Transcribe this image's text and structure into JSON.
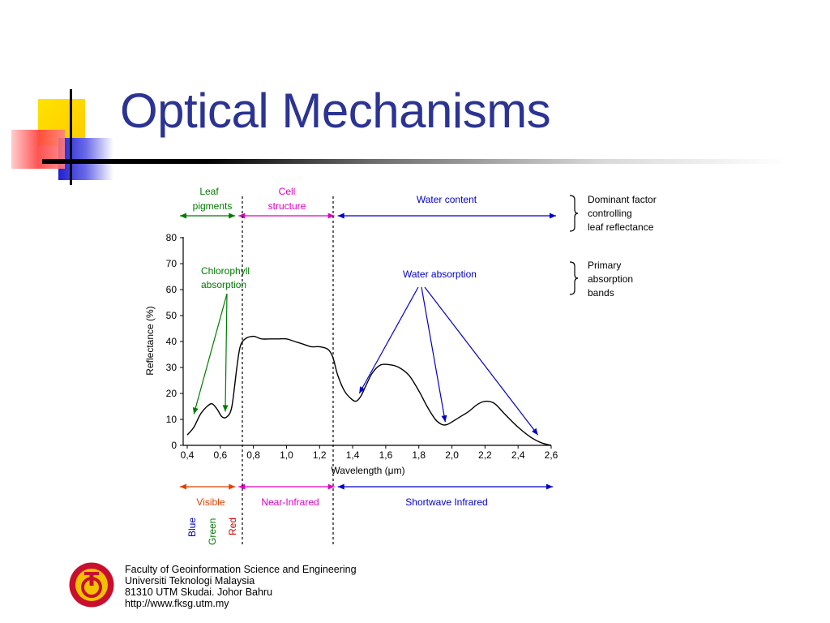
{
  "slide": {
    "title": "Optical Mechanisms"
  },
  "footer": {
    "line1": "Faculty of Geoinformation Science and Engineering",
    "line2": "Universiti Teknologi Malaysia",
    "line3": "81310 UTM Skudai. Johor Bahru",
    "line4": "http://www.fksg.utm.my"
  },
  "chart_data": {
    "type": "line",
    "xlabel": "Wavelength (μm)",
    "ylabel": "Reflectance (%)",
    "xlim": [
      0.4,
      2.6
    ],
    "ylim": [
      0,
      80
    ],
    "xticks": [
      "0,4",
      "0,6",
      "0,8",
      "1,0",
      "1,2",
      "1,4",
      "1,6",
      "1,8",
      "2,0",
      "2,2",
      "2,4",
      "2,6"
    ],
    "yticks": [
      "0",
      "10",
      "20",
      "30",
      "40",
      "50",
      "60",
      "70",
      "80"
    ],
    "grid": false,
    "series": [
      {
        "x": [
          0.4,
          0.44,
          0.48,
          0.52,
          0.55,
          0.58,
          0.61,
          0.64,
          0.67,
          0.7,
          0.72,
          0.75,
          0.8,
          0.85,
          0.9,
          0.95,
          1.0,
          1.05,
          1.1,
          1.15,
          1.2,
          1.25,
          1.28,
          1.31,
          1.35,
          1.39,
          1.42,
          1.45,
          1.48,
          1.52,
          1.57,
          1.63,
          1.68,
          1.74,
          1.8,
          1.85,
          1.9,
          1.94,
          1.97,
          2.0,
          2.05,
          2.1,
          2.16,
          2.21,
          2.26,
          2.32,
          2.4,
          2.48,
          2.54,
          2.6
        ],
        "y": [
          4,
          7,
          12,
          15,
          16,
          14,
          11,
          11,
          15,
          30,
          38,
          41,
          42,
          41,
          41,
          41,
          41,
          40,
          39,
          38,
          38,
          37,
          34,
          27,
          21,
          18,
          17,
          19,
          23,
          28,
          31,
          31,
          30,
          27,
          21,
          15,
          10,
          8,
          8,
          9,
          11,
          13,
          16,
          17,
          16,
          12,
          7,
          3,
          1,
          0
        ]
      }
    ],
    "factor_bands": [
      {
        "label": "Leaf pigments",
        "from": 0.4,
        "to": 0.7,
        "color": "#007a00"
      },
      {
        "label": "Cell structure",
        "from": 0.7,
        "to": 1.3,
        "color": "#e000c0"
      },
      {
        "label": "Water content",
        "from": 1.3,
        "to": 2.6,
        "color": "#0000cc"
      }
    ],
    "spectral_regions": [
      {
        "label": "Visible",
        "from": 0.4,
        "to": 0.7,
        "color": "#e04000"
      },
      {
        "label": "Near-Infrared",
        "from": 0.7,
        "to": 1.3,
        "color": "#e000c0"
      },
      {
        "label": "Shortwave Infrared",
        "from": 1.3,
        "to": 2.6,
        "color": "#0000cc"
      }
    ],
    "color_bands": [
      {
        "label": "Blue",
        "color": "#0000cc"
      },
      {
        "label": "Green",
        "color": "#007a00"
      },
      {
        "label": "Red",
        "color": "#d00000"
      }
    ],
    "annotations": [
      {
        "label": "Chlorophyll absorption",
        "color": "#007a00",
        "targets": [
          [
            0.44,
            12
          ],
          [
            0.63,
            13
          ]
        ]
      },
      {
        "label": "Water absorption",
        "color": "#0000cc",
        "targets": [
          [
            1.44,
            20
          ],
          [
            1.96,
            9
          ],
          [
            2.52,
            4
          ]
        ]
      }
    ],
    "legend": {
      "dominant": "Dominant factor controlling leaf reflectance",
      "primary": "Primary absorption bands"
    }
  }
}
